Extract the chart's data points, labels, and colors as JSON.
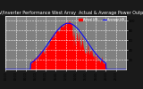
{
  "title": "Solar PV/Inverter Performance West Array  Actual & Average Power Output",
  "title_fontsize": 3.5,
  "bg_color": "#1a1a1a",
  "plot_bg_color": "#808080",
  "grid_color": "#ffffff",
  "fill_color": "#ff0000",
  "line_color": "#dd0000",
  "avg_line_color": "#0000ff",
  "legend_actual_color": "#ff0000",
  "legend_avg_color": "#ff00ff",
  "legend_actual": "Actual kW",
  "legend_avg": "Average kW",
  "ylabel_fontsize": 3.0,
  "tick_fontsize": 2.8,
  "ylim": [
    0,
    110
  ],
  "yticks": [
    20,
    40,
    60,
    80,
    100
  ],
  "xlim": [
    0,
    288
  ],
  "num_points": 288,
  "sunrise_idx": 60,
  "sunset_idx": 240,
  "peak_kw": 95
}
